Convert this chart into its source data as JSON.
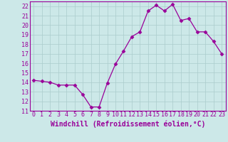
{
  "x": [
    0,
    1,
    2,
    3,
    4,
    5,
    6,
    7,
    8,
    9,
    10,
    11,
    12,
    13,
    14,
    15,
    16,
    17,
    18,
    19,
    20,
    21,
    22,
    23
  ],
  "y": [
    14.2,
    14.1,
    14.0,
    13.7,
    13.7,
    13.7,
    12.7,
    11.4,
    11.4,
    13.9,
    15.9,
    17.3,
    18.8,
    19.3,
    21.5,
    22.1,
    21.5,
    22.2,
    20.5,
    20.7,
    19.3,
    19.3,
    18.3,
    17.0
  ],
  "xlabel": "Windchill (Refroidissement éolien,°C)",
  "ylim": [
    11,
    22.5
  ],
  "xlim": [
    -0.5,
    23.5
  ],
  "yticks": [
    11,
    12,
    13,
    14,
    15,
    16,
    17,
    18,
    19,
    20,
    21,
    22
  ],
  "xticks": [
    0,
    1,
    2,
    3,
    4,
    5,
    6,
    7,
    8,
    9,
    10,
    11,
    12,
    13,
    14,
    15,
    16,
    17,
    18,
    19,
    20,
    21,
    22,
    23
  ],
  "line_color": "#990099",
  "marker": "D",
  "marker_size": 2.5,
  "background_color": "#cce8e8",
  "grid_color": "#aacccc",
  "xlabel_fontsize": 7,
  "tick_fontsize": 6,
  "line_width": 0.9
}
